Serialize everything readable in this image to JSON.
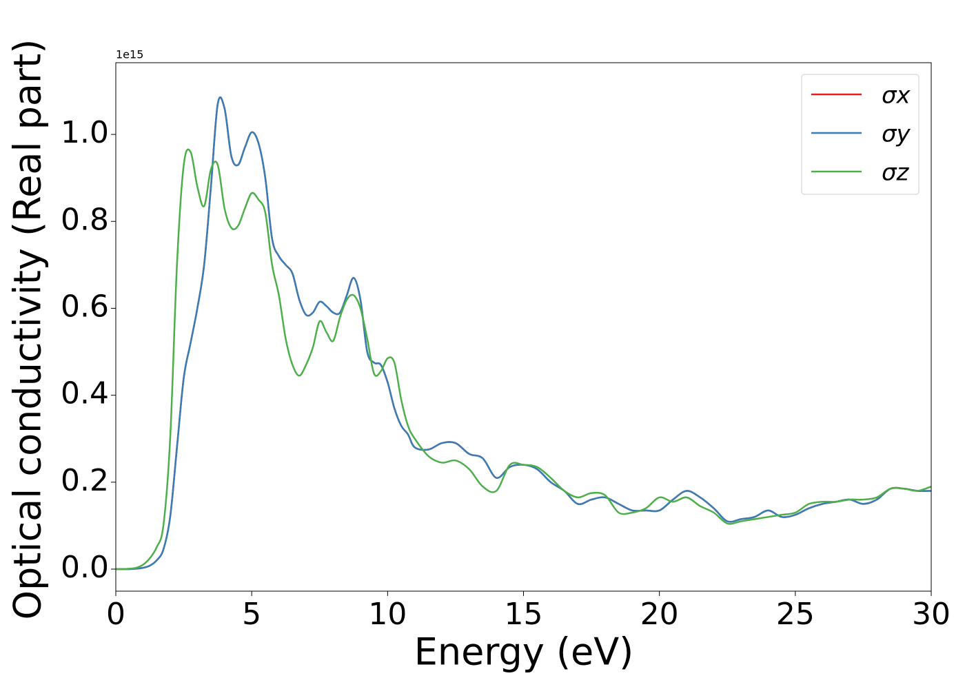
{
  "chart_data": {
    "type": "line",
    "xlabel": "Energy (eV)",
    "ylabel": "Optical conductivity (Real part)",
    "y_offset_label": "1e15",
    "x": [
      0,
      0.25,
      0.5,
      0.75,
      1,
      1.25,
      1.5,
      1.75,
      2,
      2.25,
      2.5,
      2.75,
      3,
      3.25,
      3.5,
      3.75,
      4,
      4.25,
      4.5,
      4.75,
      5,
      5.25,
      5.5,
      5.75,
      6,
      6.25,
      6.5,
      6.75,
      7,
      7.25,
      7.5,
      7.75,
      8,
      8.25,
      8.5,
      8.75,
      9,
      9.25,
      9.5,
      9.75,
      10,
      10.25,
      10.5,
      10.75,
      11,
      11.5,
      12,
      12.5,
      13,
      13.5,
      14,
      14.5,
      15,
      15.5,
      16,
      16.5,
      17,
      17.5,
      18,
      18.5,
      19,
      19.5,
      20,
      20.5,
      21,
      21.5,
      22,
      22.5,
      23,
      23.5,
      24,
      24.5,
      25,
      25.5,
      26,
      26.5,
      27,
      27.5,
      28,
      28.5,
      29,
      29.5,
      30
    ],
    "series": [
      {
        "name": "σx",
        "color": "#e41a1c",
        "values": [
          0,
          0,
          0,
          0.001,
          0.003,
          0.008,
          0.02,
          0.045,
          0.12,
          0.28,
          0.44,
          0.52,
          0.6,
          0.7,
          0.88,
          1.07,
          1.06,
          0.95,
          0.93,
          0.97,
          1.005,
          0.98,
          0.9,
          0.76,
          0.72,
          0.7,
          0.68,
          0.62,
          0.585,
          0.59,
          0.615,
          0.605,
          0.59,
          0.59,
          0.63,
          0.67,
          0.62,
          0.5,
          0.475,
          0.47,
          0.43,
          0.37,
          0.33,
          0.31,
          0.28,
          0.275,
          0.29,
          0.29,
          0.265,
          0.255,
          0.21,
          0.235,
          0.24,
          0.23,
          0.2,
          0.18,
          0.15,
          0.16,
          0.165,
          0.15,
          0.135,
          0.135,
          0.135,
          0.16,
          0.18,
          0.165,
          0.14,
          0.11,
          0.115,
          0.12,
          0.135,
          0.12,
          0.125,
          0.14,
          0.15,
          0.155,
          0.16,
          0.15,
          0.16,
          0.185,
          0.185,
          0.18,
          0.18
        ]
      },
      {
        "name": "σy",
        "color": "#377eb8",
        "values": [
          0,
          0,
          0,
          0.001,
          0.003,
          0.008,
          0.02,
          0.045,
          0.12,
          0.28,
          0.44,
          0.52,
          0.6,
          0.7,
          0.88,
          1.07,
          1.06,
          0.95,
          0.93,
          0.97,
          1.005,
          0.98,
          0.9,
          0.76,
          0.72,
          0.7,
          0.68,
          0.62,
          0.585,
          0.59,
          0.615,
          0.605,
          0.59,
          0.59,
          0.63,
          0.67,
          0.62,
          0.5,
          0.475,
          0.47,
          0.43,
          0.37,
          0.33,
          0.31,
          0.28,
          0.275,
          0.29,
          0.29,
          0.265,
          0.255,
          0.21,
          0.235,
          0.24,
          0.23,
          0.2,
          0.18,
          0.15,
          0.16,
          0.165,
          0.15,
          0.135,
          0.135,
          0.135,
          0.16,
          0.18,
          0.165,
          0.14,
          0.11,
          0.115,
          0.12,
          0.135,
          0.12,
          0.125,
          0.14,
          0.15,
          0.155,
          0.16,
          0.15,
          0.16,
          0.185,
          0.185,
          0.18,
          0.18
        ]
      },
      {
        "name": "σz",
        "color": "#4daf4a",
        "values": [
          0,
          0,
          0.001,
          0.003,
          0.01,
          0.025,
          0.05,
          0.1,
          0.3,
          0.7,
          0.93,
          0.96,
          0.88,
          0.835,
          0.92,
          0.93,
          0.83,
          0.785,
          0.79,
          0.83,
          0.865,
          0.85,
          0.82,
          0.7,
          0.63,
          0.53,
          0.47,
          0.445,
          0.47,
          0.51,
          0.57,
          0.545,
          0.525,
          0.58,
          0.62,
          0.63,
          0.6,
          0.53,
          0.45,
          0.455,
          0.485,
          0.475,
          0.39,
          0.33,
          0.3,
          0.26,
          0.245,
          0.25,
          0.23,
          0.19,
          0.18,
          0.24,
          0.24,
          0.235,
          0.21,
          0.18,
          0.165,
          0.175,
          0.17,
          0.13,
          0.13,
          0.14,
          0.165,
          0.155,
          0.165,
          0.145,
          0.13,
          0.105,
          0.11,
          0.115,
          0.12,
          0.125,
          0.13,
          0.15,
          0.155,
          0.155,
          0.16,
          0.16,
          0.165,
          0.185,
          0.185,
          0.18,
          0.19
        ]
      }
    ],
    "xlim": [
      0,
      30
    ],
    "xticks": [
      0,
      5,
      10,
      15,
      20,
      25,
      30
    ],
    "ylim": [
      -0.0507,
      1.165
    ],
    "yticks": [
      {
        "value": 0,
        "label": "0.0"
      },
      0.2,
      0.4,
      0.6,
      0.8,
      {
        "value": 1,
        "label": "1.0"
      }
    ],
    "grid": false,
    "legend": "upper right"
  }
}
